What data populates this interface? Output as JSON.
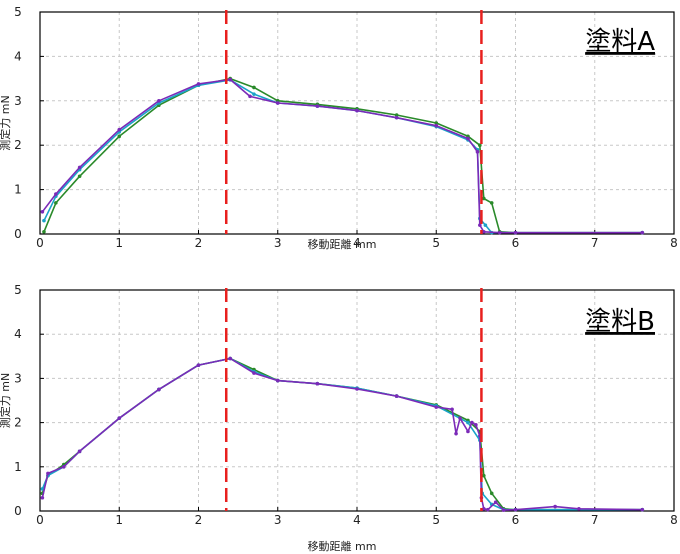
{
  "chart_data": [
    {
      "type": "line",
      "title": "塗料A",
      "xlabel": "移動距離 mm",
      "ylabel": "測定力 mN",
      "xlim": [
        0,
        8
      ],
      "ylim": [
        0,
        5
      ],
      "xticks": [
        "0",
        "1",
        "2",
        "3",
        "4",
        "5",
        "6",
        "7",
        "8"
      ],
      "yticks": [
        "0",
        "1",
        "2",
        "3",
        "4",
        "5"
      ],
      "grid": true,
      "markers": [
        2.35,
        5.57
      ],
      "marker_color": "#e8201e",
      "series": [
        {
          "color": "#2a8a2a",
          "x": [
            0.05,
            0.2,
            0.5,
            1.0,
            1.5,
            2.0,
            2.4,
            2.7,
            3.0,
            3.5,
            4.0,
            4.5,
            5.0,
            5.4,
            5.55,
            5.6,
            5.7,
            5.8,
            6.0,
            7.6
          ],
          "y": [
            0.05,
            0.7,
            1.3,
            2.2,
            2.9,
            3.35,
            3.5,
            3.3,
            3.0,
            2.92,
            2.82,
            2.68,
            2.5,
            2.2,
            2.0,
            0.8,
            0.7,
            0.05,
            0.03,
            0.03
          ]
        },
        {
          "color": "#1aa3c8",
          "x": [
            0.05,
            0.2,
            0.5,
            1.0,
            1.5,
            2.0,
            2.4,
            2.7,
            3.0,
            3.5,
            4.0,
            4.5,
            5.0,
            5.4,
            5.52,
            5.55,
            5.62,
            5.7,
            6.0,
            7.6
          ],
          "y": [
            0.3,
            0.85,
            1.45,
            2.3,
            2.95,
            3.35,
            3.47,
            3.15,
            2.95,
            2.88,
            2.78,
            2.62,
            2.42,
            2.12,
            1.9,
            0.35,
            0.2,
            0.03,
            0.03,
            0.03
          ]
        },
        {
          "color": "#7b2ab8",
          "x": [
            0.03,
            0.2,
            0.5,
            1.0,
            1.5,
            2.0,
            2.4,
            2.65,
            3.0,
            3.5,
            4.0,
            4.5,
            5.0,
            5.4,
            5.52,
            5.55,
            5.6,
            5.8,
            6.0,
            7.6
          ],
          "y": [
            0.5,
            0.9,
            1.5,
            2.35,
            3.0,
            3.38,
            3.48,
            3.1,
            2.95,
            2.88,
            2.78,
            2.62,
            2.44,
            2.15,
            1.85,
            0.2,
            0.05,
            0.03,
            0.03,
            0.03
          ]
        }
      ]
    },
    {
      "type": "line",
      "title": "塗料B",
      "xlabel": "移動距離 mm",
      "ylabel": "測定力 mN",
      "xlim": [
        0,
        8
      ],
      "ylim": [
        0,
        5
      ],
      "xticks": [
        "0",
        "1",
        "2",
        "3",
        "4",
        "5",
        "6",
        "7",
        "8"
      ],
      "yticks": [
        "0",
        "1",
        "2",
        "3",
        "4",
        "5"
      ],
      "grid": true,
      "markers": [
        2.35,
        5.57
      ],
      "marker_color": "#e8201e",
      "series": [
        {
          "color": "#2a8a2a",
          "x": [
            0.03,
            0.1,
            0.3,
            0.5,
            1.0,
            1.5,
            2.0,
            2.4,
            2.7,
            3.0,
            3.5,
            4.0,
            4.5,
            5.0,
            5.4,
            5.55,
            5.6,
            5.7,
            5.85,
            6.0,
            7.6
          ],
          "y": [
            0.4,
            0.8,
            1.05,
            1.35,
            2.1,
            2.75,
            3.3,
            3.45,
            3.2,
            2.95,
            2.88,
            2.78,
            2.6,
            2.4,
            2.05,
            1.8,
            0.8,
            0.4,
            0.05,
            0.03,
            0.03
          ]
        },
        {
          "color": "#1aa3c8",
          "x": [
            0.03,
            0.1,
            0.3,
            0.5,
            1.0,
            1.5,
            2.0,
            2.4,
            2.7,
            3.0,
            3.5,
            4.0,
            4.5,
            5.0,
            5.4,
            5.55,
            5.58,
            5.7,
            5.85,
            6.0,
            7.6
          ],
          "y": [
            0.5,
            0.8,
            1.0,
            1.35,
            2.1,
            2.75,
            3.3,
            3.45,
            3.15,
            2.95,
            2.88,
            2.78,
            2.6,
            2.38,
            2.0,
            1.6,
            0.4,
            0.15,
            0.03,
            0.03,
            0.03
          ]
        },
        {
          "color": "#7b2ab8",
          "x": [
            0.03,
            0.1,
            0.3,
            0.5,
            1.0,
            1.5,
            2.0,
            2.4,
            2.7,
            3.0,
            3.5,
            4.0,
            4.5,
            5.0,
            5.2,
            5.25,
            5.3,
            5.4,
            5.45,
            5.5,
            5.55,
            5.57,
            5.6,
            5.65,
            5.75,
            5.85,
            6.0,
            6.5,
            6.8,
            7.6
          ],
          "y": [
            0.3,
            0.85,
            1.0,
            1.35,
            2.1,
            2.75,
            3.3,
            3.45,
            3.12,
            2.95,
            2.88,
            2.76,
            2.6,
            2.35,
            2.3,
            1.75,
            2.1,
            1.8,
            2.0,
            1.95,
            1.7,
            0.3,
            0.05,
            0.03,
            0.2,
            0.02,
            0.03,
            0.1,
            0.05,
            0.03
          ]
        }
      ]
    }
  ]
}
